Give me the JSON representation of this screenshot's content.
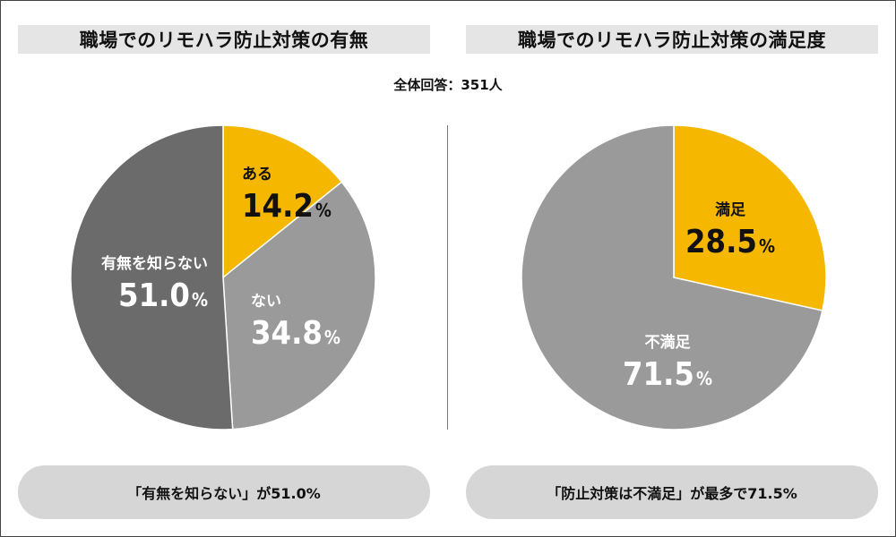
{
  "chart_data": [
    {
      "type": "pie",
      "title": "職場でのリモハラ防止対策の有無",
      "unit": "%",
      "slices": [
        {
          "label": "ある",
          "value": 14.2,
          "value_text": "14.2",
          "color": "#f5b700",
          "text_color": "#111111"
        },
        {
          "label": "ない",
          "value": 34.8,
          "value_text": "34.8",
          "color": "#9a9a9a",
          "text_color": "#ffffff"
        },
        {
          "label": "有無を知らない",
          "value": 51.0,
          "value_text": "51.0",
          "color": "#6b6b6b",
          "text_color": "#ffffff"
        }
      ]
    },
    {
      "type": "pie",
      "title": "職場でのリモハラ防止対策の満足度",
      "unit": "%",
      "slices": [
        {
          "label": "満足",
          "value": 28.5,
          "value_text": "28.5",
          "color": "#f5b700",
          "text_color": "#111111"
        },
        {
          "label": "不満足",
          "value": 71.5,
          "value_text": "71.5",
          "color": "#9a9a9a",
          "text_color": "#ffffff"
        }
      ]
    }
  ],
  "subtitle": "全体回答：351人",
  "summaries": {
    "left": "「有無を知らない」が51.0%",
    "right": "「防止対策は不満足」が最多で71.5%"
  }
}
